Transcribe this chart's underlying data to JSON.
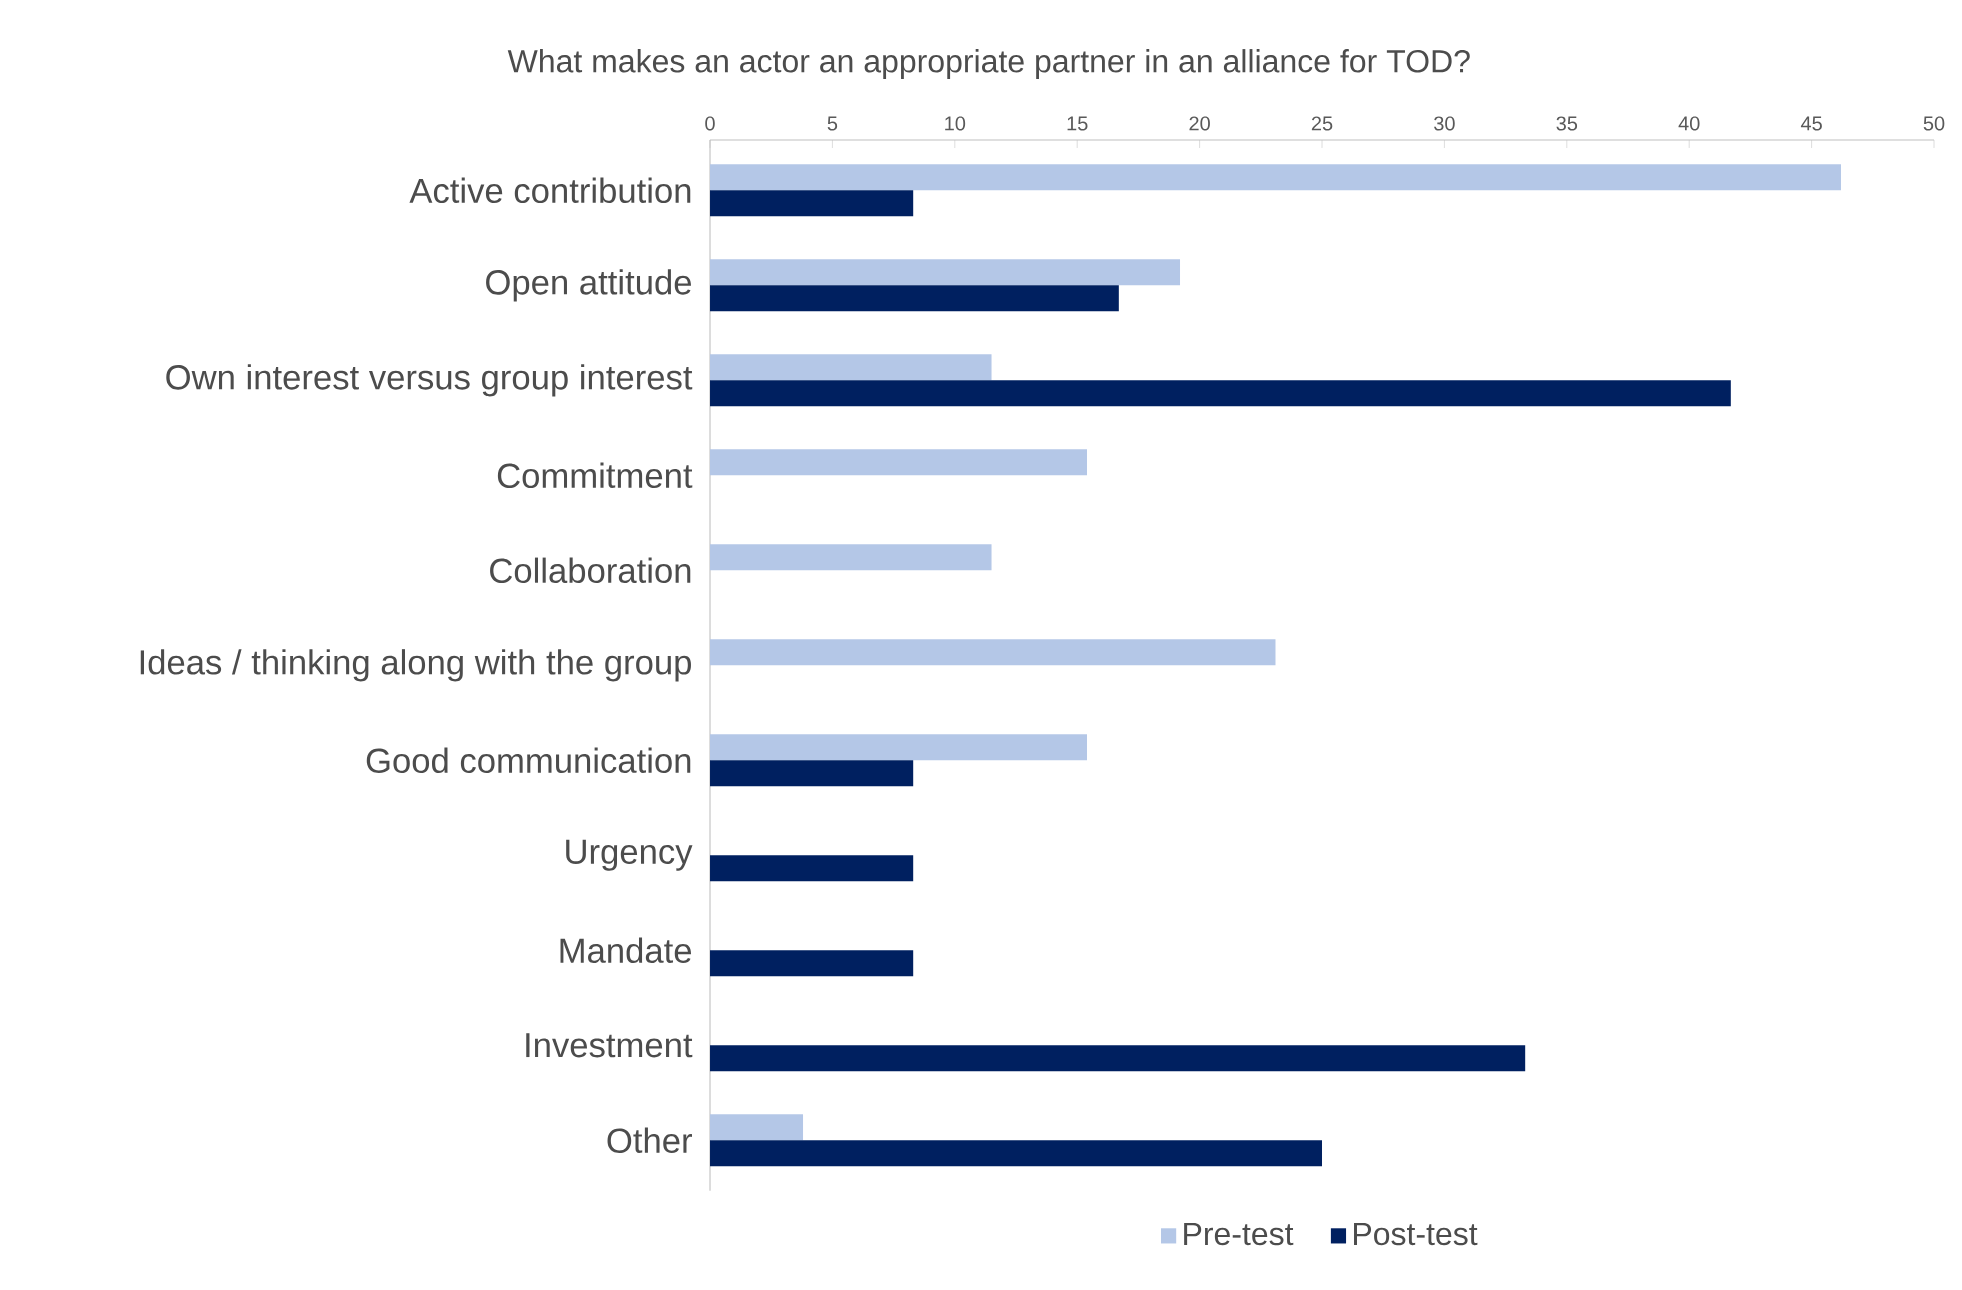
{
  "chart_data": {
    "type": "bar",
    "orientation": "horizontal",
    "title": "What makes an actor an appropriate partner in an alliance for TOD?",
    "categories": [
      "Active contribution",
      "Open attitude",
      "Own interest versus group interest",
      "Commitment",
      "Collaboration",
      "Ideas / thinking along with the group",
      "Good communication",
      "Urgency",
      "Mandate",
      "Investment",
      "Other"
    ],
    "series": [
      {
        "name": "Pre-test",
        "color": "#b4c7e7",
        "values": [
          46.2,
          19.2,
          11.5,
          15.4,
          11.5,
          23.1,
          15.4,
          null,
          null,
          null,
          3.8
        ]
      },
      {
        "name": "Post-test",
        "color": "#002060",
        "values": [
          8.3,
          16.7,
          41.7,
          null,
          null,
          null,
          8.3,
          8.3,
          8.3,
          33.3,
          25.0
        ]
      }
    ],
    "xlim": [
      0,
      50
    ],
    "xticks": [
      0,
      5,
      10,
      15,
      20,
      25,
      30,
      35,
      40,
      45,
      50
    ],
    "legend": "bottom"
  }
}
